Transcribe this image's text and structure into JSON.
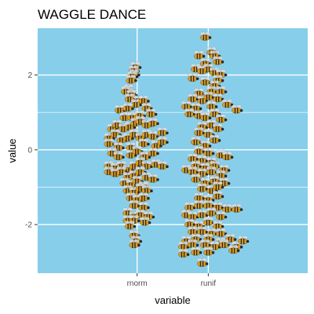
{
  "chart_data": {
    "type": "scatter",
    "title": "WAGGLE DANCE",
    "xlabel": "variable",
    "ylabel": "value",
    "categories": [
      "rnorm",
      "runif"
    ],
    "ylim": [
      -3.3,
      3.25
    ],
    "yticks": [
      -2,
      0,
      2
    ],
    "ytick_labels": [
      "-2",
      "0",
      "2"
    ],
    "grid": true,
    "legend": "none",
    "marker": "bee",
    "series": [
      {
        "category": "rnorm",
        "points": [
          {
            "dx": -0.03,
            "y": 2.2
          },
          {
            "dx": -0.06,
            "y": 2.1
          },
          {
            "dx": -0.05,
            "y": 2.0
          },
          {
            "dx": -0.08,
            "y": 1.95
          },
          {
            "dx": -0.1,
            "y": 1.85
          },
          {
            "dx": -0.14,
            "y": 1.6
          },
          {
            "dx": -0.12,
            "y": 1.5
          },
          {
            "dx": -0.18,
            "y": 1.55
          },
          {
            "dx": -0.09,
            "y": 1.45
          },
          {
            "dx": -0.12,
            "y": 1.35
          },
          {
            "dx": 0.02,
            "y": 1.3
          },
          {
            "dx": -0.02,
            "y": 1.2
          },
          {
            "dx": 0.1,
            "y": 1.3
          },
          {
            "dx": -0.28,
            "y": 1.05
          },
          {
            "dx": -0.15,
            "y": 1.1
          },
          {
            "dx": 0.15,
            "y": 1.1
          },
          {
            "dx": -0.2,
            "y": 0.85
          },
          {
            "dx": -0.08,
            "y": 0.85
          },
          {
            "dx": 0.04,
            "y": 0.9
          },
          {
            "dx": 0.22,
            "y": 0.95
          },
          {
            "dx": -0.4,
            "y": 0.55
          },
          {
            "dx": -0.32,
            "y": 0.65
          },
          {
            "dx": -0.22,
            "y": 0.55
          },
          {
            "dx": -0.12,
            "y": 0.6
          },
          {
            "dx": -0.03,
            "y": 0.7
          },
          {
            "dx": 0.05,
            "y": 0.75
          },
          {
            "dx": 0.15,
            "y": 0.65
          },
          {
            "dx": 0.25,
            "y": 0.7
          },
          {
            "dx": -0.45,
            "y": 0.3
          },
          {
            "dx": -0.35,
            "y": 0.4
          },
          {
            "dx": -0.25,
            "y": 0.25
          },
          {
            "dx": -0.15,
            "y": 0.3
          },
          {
            "dx": -0.05,
            "y": 0.4
          },
          {
            "dx": 0.05,
            "y": 0.3
          },
          {
            "dx": 0.15,
            "y": 0.4
          },
          {
            "dx": 0.25,
            "y": 0.35
          },
          {
            "dx": 0.4,
            "y": 0.45
          },
          {
            "dx": -0.45,
            "y": 0.15
          },
          {
            "dx": -0.3,
            "y": 0.05
          },
          {
            "dx": -0.1,
            "y": 0.05
          },
          {
            "dx": 0.1,
            "y": 0.15
          },
          {
            "dx": 0.3,
            "y": 0.1
          },
          {
            "dx": 0.4,
            "y": 0.2
          },
          {
            "dx": -0.4,
            "y": -0.1
          },
          {
            "dx": -0.3,
            "y": -0.2
          },
          {
            "dx": -0.1,
            "y": -0.15
          },
          {
            "dx": 0.0,
            "y": -0.05
          },
          {
            "dx": 0.12,
            "y": -0.2
          },
          {
            "dx": 0.25,
            "y": -0.1
          },
          {
            "dx": -0.45,
            "y": -0.45
          },
          {
            "dx": -0.35,
            "y": -0.5
          },
          {
            "dx": -0.25,
            "y": -0.45
          },
          {
            "dx": -0.15,
            "y": -0.55
          },
          {
            "dx": -0.05,
            "y": -0.45
          },
          {
            "dx": 0.05,
            "y": -0.35
          },
          {
            "dx": 0.15,
            "y": -0.45
          },
          {
            "dx": 0.3,
            "y": -0.4
          },
          {
            "dx": 0.4,
            "y": -0.45
          },
          {
            "dx": -0.45,
            "y": -0.6
          },
          {
            "dx": -0.35,
            "y": -0.65
          },
          {
            "dx": -0.25,
            "y": -0.6
          },
          {
            "dx": -0.15,
            "y": -0.75
          },
          {
            "dx": -0.05,
            "y": -0.7
          },
          {
            "dx": 0.05,
            "y": -0.6
          },
          {
            "dx": 0.15,
            "y": -0.75
          },
          {
            "dx": -0.2,
            "y": -0.9
          },
          {
            "dx": -0.1,
            "y": -0.95
          },
          {
            "dx": 0.0,
            "y": -0.85
          },
          {
            "dx": 0.1,
            "y": -1.0
          },
          {
            "dx": 0.25,
            "y": -0.8
          },
          {
            "dx": -0.15,
            "y": -1.1
          },
          {
            "dx": -0.05,
            "y": -1.15
          },
          {
            "dx": 0.05,
            "y": -1.05
          },
          {
            "dx": 0.15,
            "y": -1.1
          },
          {
            "dx": -0.1,
            "y": -1.3
          },
          {
            "dx": 0.0,
            "y": -1.35
          },
          {
            "dx": 0.1,
            "y": -1.3
          },
          {
            "dx": -0.05,
            "y": -1.5
          },
          {
            "dx": 0.1,
            "y": -1.55
          },
          {
            "dx": -0.15,
            "y": -1.7
          },
          {
            "dx": -0.05,
            "y": -1.8
          },
          {
            "dx": 0.05,
            "y": -1.75
          },
          {
            "dx": 0.18,
            "y": -1.8
          },
          {
            "dx": -0.15,
            "y": -1.9
          },
          {
            "dx": -0.05,
            "y": -1.9
          },
          {
            "dx": 0.12,
            "y": -1.95
          },
          {
            "dx": -0.12,
            "y": -2.05
          },
          {
            "dx": -0.05,
            "y": -2.3
          },
          {
            "dx": -0.02,
            "y": -2.45
          },
          {
            "dx": -0.05,
            "y": -2.55
          }
        ]
      },
      {
        "category": "runif",
        "points": [
          {
            "dx": -0.05,
            "y": 3.0
          },
          {
            "dx": 0.05,
            "y": 2.6
          },
          {
            "dx": 0.1,
            "y": 2.5
          },
          {
            "dx": -0.15,
            "y": 2.5
          },
          {
            "dx": 0.15,
            "y": 2.35
          },
          {
            "dx": -0.05,
            "y": 2.3
          },
          {
            "dx": -0.2,
            "y": 2.15
          },
          {
            "dx": -0.1,
            "y": 2.1
          },
          {
            "dx": 0.0,
            "y": 2.15
          },
          {
            "dx": 0.1,
            "y": 2.05
          },
          {
            "dx": 0.2,
            "y": 2.0
          },
          {
            "dx": -0.25,
            "y": 1.9
          },
          {
            "dx": 0.15,
            "y": 1.85
          },
          {
            "dx": -0.05,
            "y": 1.8
          },
          {
            "dx": 0.1,
            "y": 1.7
          },
          {
            "dx": 0.05,
            "y": 1.55
          },
          {
            "dx": -0.15,
            "y": 1.5
          },
          {
            "dx": 0.2,
            "y": 1.55
          },
          {
            "dx": -0.25,
            "y": 1.35
          },
          {
            "dx": -0.1,
            "y": 1.3
          },
          {
            "dx": 0.0,
            "y": 1.4
          },
          {
            "dx": 0.15,
            "y": 1.35
          },
          {
            "dx": -0.35,
            "y": 1.15
          },
          {
            "dx": -0.2,
            "y": 1.1
          },
          {
            "dx": 0.05,
            "y": 1.15
          },
          {
            "dx": 0.3,
            "y": 1.2
          },
          {
            "dx": 0.45,
            "y": 1.05
          },
          {
            "dx": -0.3,
            "y": 0.95
          },
          {
            "dx": -0.15,
            "y": 0.9
          },
          {
            "dx": -0.05,
            "y": 0.85
          },
          {
            "dx": 0.1,
            "y": 0.95
          },
          {
            "dx": 0.2,
            "y": 0.8
          },
          {
            "dx": -0.1,
            "y": 0.6
          },
          {
            "dx": 0.05,
            "y": 0.65
          },
          {
            "dx": 0.15,
            "y": 0.55
          },
          {
            "dx": -0.15,
            "y": 0.45
          },
          {
            "dx": 0.0,
            "y": 0.4
          },
          {
            "dx": 0.1,
            "y": 0.25
          },
          {
            "dx": -0.2,
            "y": 0.2
          },
          {
            "dx": -0.05,
            "y": 0.1
          },
          {
            "dx": -0.15,
            "y": -0.05
          },
          {
            "dx": 0.0,
            "y": -0.1
          },
          {
            "dx": 0.2,
            "y": -0.15
          },
          {
            "dx": 0.3,
            "y": -0.2
          },
          {
            "dx": -0.25,
            "y": -0.25
          },
          {
            "dx": -0.1,
            "y": -0.3
          },
          {
            "dx": 0.05,
            "y": -0.35
          },
          {
            "dx": -0.2,
            "y": -0.45
          },
          {
            "dx": -0.05,
            "y": -0.5
          },
          {
            "dx": 0.1,
            "y": -0.45
          },
          {
            "dx": 0.25,
            "y": -0.55
          },
          {
            "dx": -0.35,
            "y": -0.55
          },
          {
            "dx": -0.25,
            "y": -0.6
          },
          {
            "dx": -0.1,
            "y": -0.65
          },
          {
            "dx": 0.05,
            "y": -0.6
          },
          {
            "dx": 0.2,
            "y": -0.7
          },
          {
            "dx": -0.2,
            "y": -0.8
          },
          {
            "dx": -0.05,
            "y": -0.9
          },
          {
            "dx": 0.1,
            "y": -0.85
          },
          {
            "dx": 0.25,
            "y": -0.9
          },
          {
            "dx": -0.1,
            "y": -1.05
          },
          {
            "dx": 0.05,
            "y": -1.1
          },
          {
            "dx": 0.15,
            "y": -1.0
          },
          {
            "dx": -0.15,
            "y": -1.3
          },
          {
            "dx": 0.0,
            "y": -1.35
          },
          {
            "dx": 0.15,
            "y": -1.25
          },
          {
            "dx": -0.3,
            "y": -1.55
          },
          {
            "dx": -0.15,
            "y": -1.5
          },
          {
            "dx": 0.0,
            "y": -1.5
          },
          {
            "dx": 0.15,
            "y": -1.55
          },
          {
            "dx": 0.3,
            "y": -1.6
          },
          {
            "dx": 0.45,
            "y": -1.6
          },
          {
            "dx": -0.35,
            "y": -1.75
          },
          {
            "dx": -0.25,
            "y": -1.8
          },
          {
            "dx": -0.1,
            "y": -1.75
          },
          {
            "dx": 0.05,
            "y": -1.7
          },
          {
            "dx": 0.2,
            "y": -1.8
          },
          {
            "dx": -0.3,
            "y": -2.0
          },
          {
            "dx": -0.15,
            "y": -2.05
          },
          {
            "dx": 0.0,
            "y": -1.95
          },
          {
            "dx": 0.15,
            "y": -2.05
          },
          {
            "dx": -0.25,
            "y": -2.2
          },
          {
            "dx": -0.1,
            "y": -2.2
          },
          {
            "dx": 0.05,
            "y": -2.25
          },
          {
            "dx": 0.2,
            "y": -2.25
          },
          {
            "dx": -0.35,
            "y": -2.45
          },
          {
            "dx": -0.2,
            "y": -2.4
          },
          {
            "dx": 0.0,
            "y": -2.4
          },
          {
            "dx": 0.2,
            "y": -2.5
          },
          {
            "dx": 0.35,
            "y": -2.4
          },
          {
            "dx": -0.4,
            "y": -2.6
          },
          {
            "dx": -0.25,
            "y": -2.55
          },
          {
            "dx": -0.05,
            "y": -2.55
          },
          {
            "dx": 0.1,
            "y": -2.6
          },
          {
            "dx": 0.25,
            "y": -2.55
          },
          {
            "dx": 0.45,
            "y": -2.6
          },
          {
            "dx": 0.55,
            "y": -2.45
          },
          {
            "dx": 0.4,
            "y": -2.7
          },
          {
            "dx": -0.4,
            "y": -2.8
          },
          {
            "dx": -0.2,
            "y": -2.75
          },
          {
            "dx": 0.0,
            "y": -2.75
          },
          {
            "dx": -0.1,
            "y": -3.05
          }
        ]
      }
    ]
  },
  "colors": {
    "panel_background": "#87ceeb",
    "grid_major": "#ffffff",
    "bee_body": "#e0a020",
    "bee_stripe": "#2a2a2a",
    "bee_wing": "#d8dde2"
  }
}
